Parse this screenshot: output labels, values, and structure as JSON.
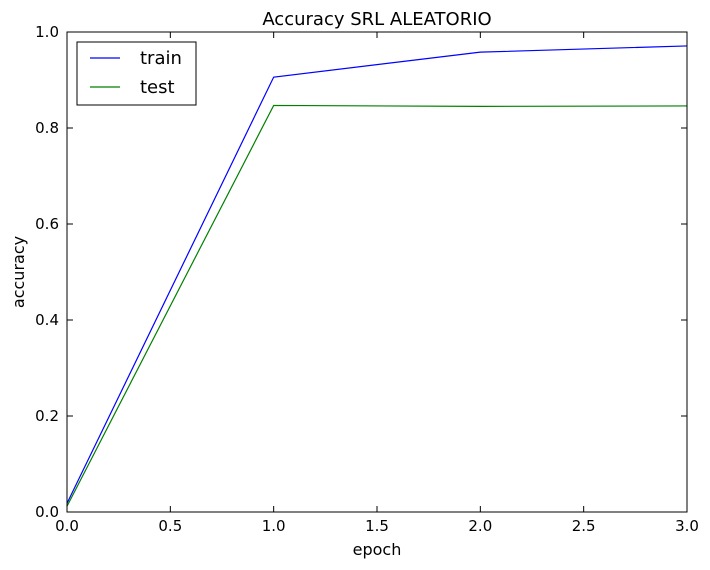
{
  "chart_data": {
    "type": "line",
    "title": "Accuracy SRL ALEATORIO",
    "xlabel": "epoch",
    "ylabel": "accuracy",
    "xlim": [
      0.0,
      3.0
    ],
    "ylim": [
      0.0,
      1.0
    ],
    "x_ticks": [
      "0.0",
      "0.5",
      "1.0",
      "1.5",
      "2.0",
      "2.5",
      "3.0"
    ],
    "y_ticks": [
      "0.0",
      "0.2",
      "0.4",
      "0.6",
      "0.8",
      "1.0"
    ],
    "grid": false,
    "legend_position": "top-left",
    "x": [
      0,
      1,
      2,
      3
    ],
    "series": [
      {
        "name": "train",
        "color": "#0000ff",
        "values": [
          0.018,
          0.906,
          0.958,
          0.971
        ]
      },
      {
        "name": "test",
        "color": "#008000",
        "values": [
          0.012,
          0.847,
          0.845,
          0.846
        ]
      }
    ]
  }
}
